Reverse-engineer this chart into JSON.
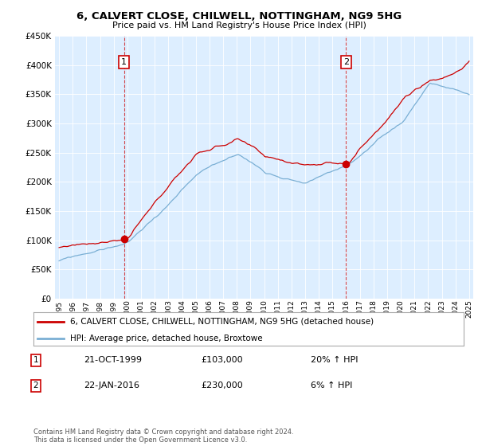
{
  "title": "6, CALVERT CLOSE, CHILWELL, NOTTINGHAM, NG9 5HG",
  "subtitle": "Price paid vs. HM Land Registry's House Price Index (HPI)",
  "legend_label_red": "6, CALVERT CLOSE, CHILWELL, NOTTINGHAM, NG9 5HG (detached house)",
  "legend_label_blue": "HPI: Average price, detached house, Broxtowe",
  "annotation1_date": "21-OCT-1999",
  "annotation1_price": "£103,000",
  "annotation1_hpi": "20% ↑ HPI",
  "annotation2_date": "22-JAN-2016",
  "annotation2_price": "£230,000",
  "annotation2_hpi": "6% ↑ HPI",
  "footnote": "Contains HM Land Registry data © Crown copyright and database right 2024.\nThis data is licensed under the Open Government Licence v3.0.",
  "ylim": [
    0,
    450000
  ],
  "year_start": 1995,
  "year_end": 2025,
  "red_color": "#cc0000",
  "blue_color": "#7aafd4",
  "vline_color": "#cc0000",
  "bg_chart": "#ddeeff",
  "background_color": "#ffffff",
  "grid_color": "#ffffff"
}
